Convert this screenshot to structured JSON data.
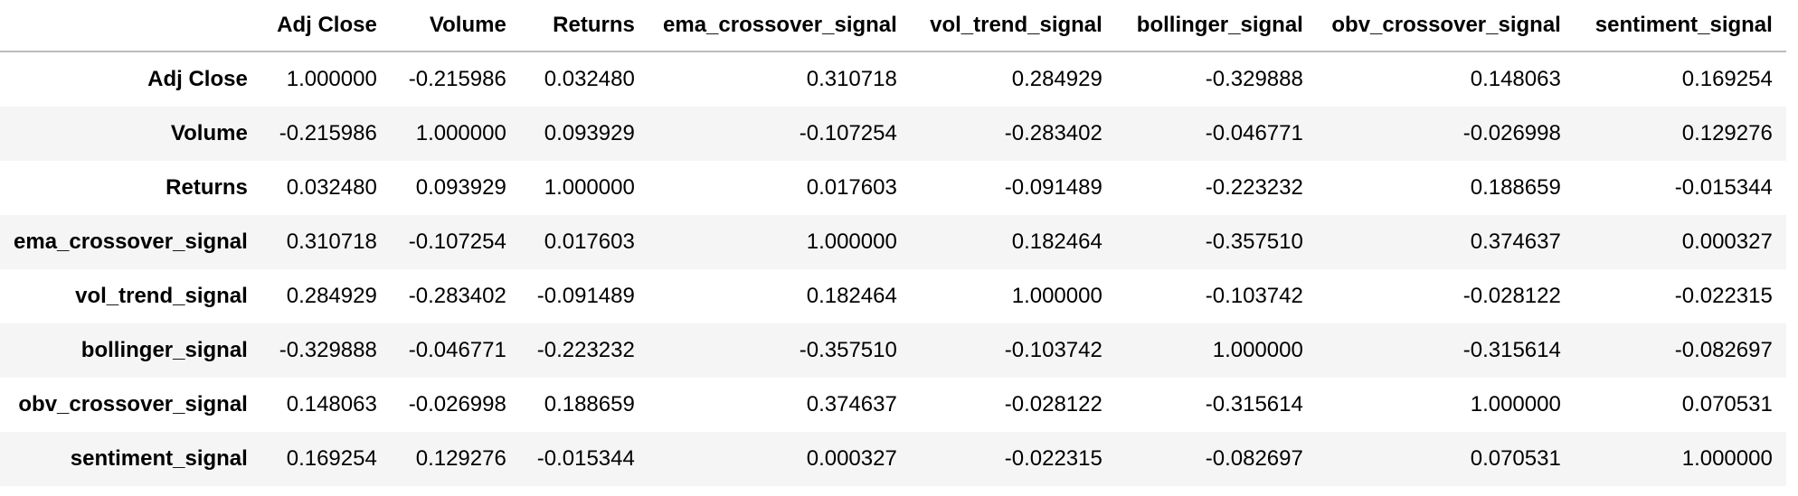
{
  "table": {
    "columns": [
      "",
      "Adj Close",
      "Volume",
      "Returns",
      "ema_crossover_signal",
      "vol_trend_signal",
      "bollinger_signal",
      "obv_crossover_signal",
      "sentiment_signal"
    ],
    "rows": [
      {
        "index": "Adj Close",
        "values": [
          "1.000000",
          "-0.215986",
          "0.032480",
          "0.310718",
          "0.284929",
          "-0.329888",
          "0.148063",
          "0.169254"
        ]
      },
      {
        "index": "Volume",
        "values": [
          "-0.215986",
          "1.000000",
          "0.093929",
          "-0.107254",
          "-0.283402",
          "-0.046771",
          "-0.026998",
          "0.129276"
        ]
      },
      {
        "index": "Returns",
        "values": [
          "0.032480",
          "0.093929",
          "1.000000",
          "0.017603",
          "-0.091489",
          "-0.223232",
          "0.188659",
          "-0.015344"
        ]
      },
      {
        "index": "ema_crossover_signal",
        "values": [
          "0.310718",
          "-0.107254",
          "0.017603",
          "1.000000",
          "0.182464",
          "-0.357510",
          "0.374637",
          "0.000327"
        ]
      },
      {
        "index": "vol_trend_signal",
        "values": [
          "0.284929",
          "-0.283402",
          "-0.091489",
          "0.182464",
          "1.000000",
          "-0.103742",
          "-0.028122",
          "-0.022315"
        ]
      },
      {
        "index": "bollinger_signal",
        "values": [
          "-0.329888",
          "-0.046771",
          "-0.223232",
          "-0.357510",
          "-0.103742",
          "1.000000",
          "-0.315614",
          "-0.082697"
        ]
      },
      {
        "index": "obv_crossover_signal",
        "values": [
          "0.148063",
          "-0.026998",
          "0.188659",
          "0.374637",
          "-0.028122",
          "-0.315614",
          "1.000000",
          "0.070531"
        ]
      },
      {
        "index": "sentiment_signal",
        "values": [
          "0.169254",
          "0.129276",
          "-0.015344",
          "0.000327",
          "-0.022315",
          "-0.082697",
          "0.070531",
          "1.000000"
        ]
      }
    ]
  },
  "colors": {
    "stripe": "#f5f5f5",
    "header_rule": "#bdbdbd",
    "text": "#000000"
  }
}
